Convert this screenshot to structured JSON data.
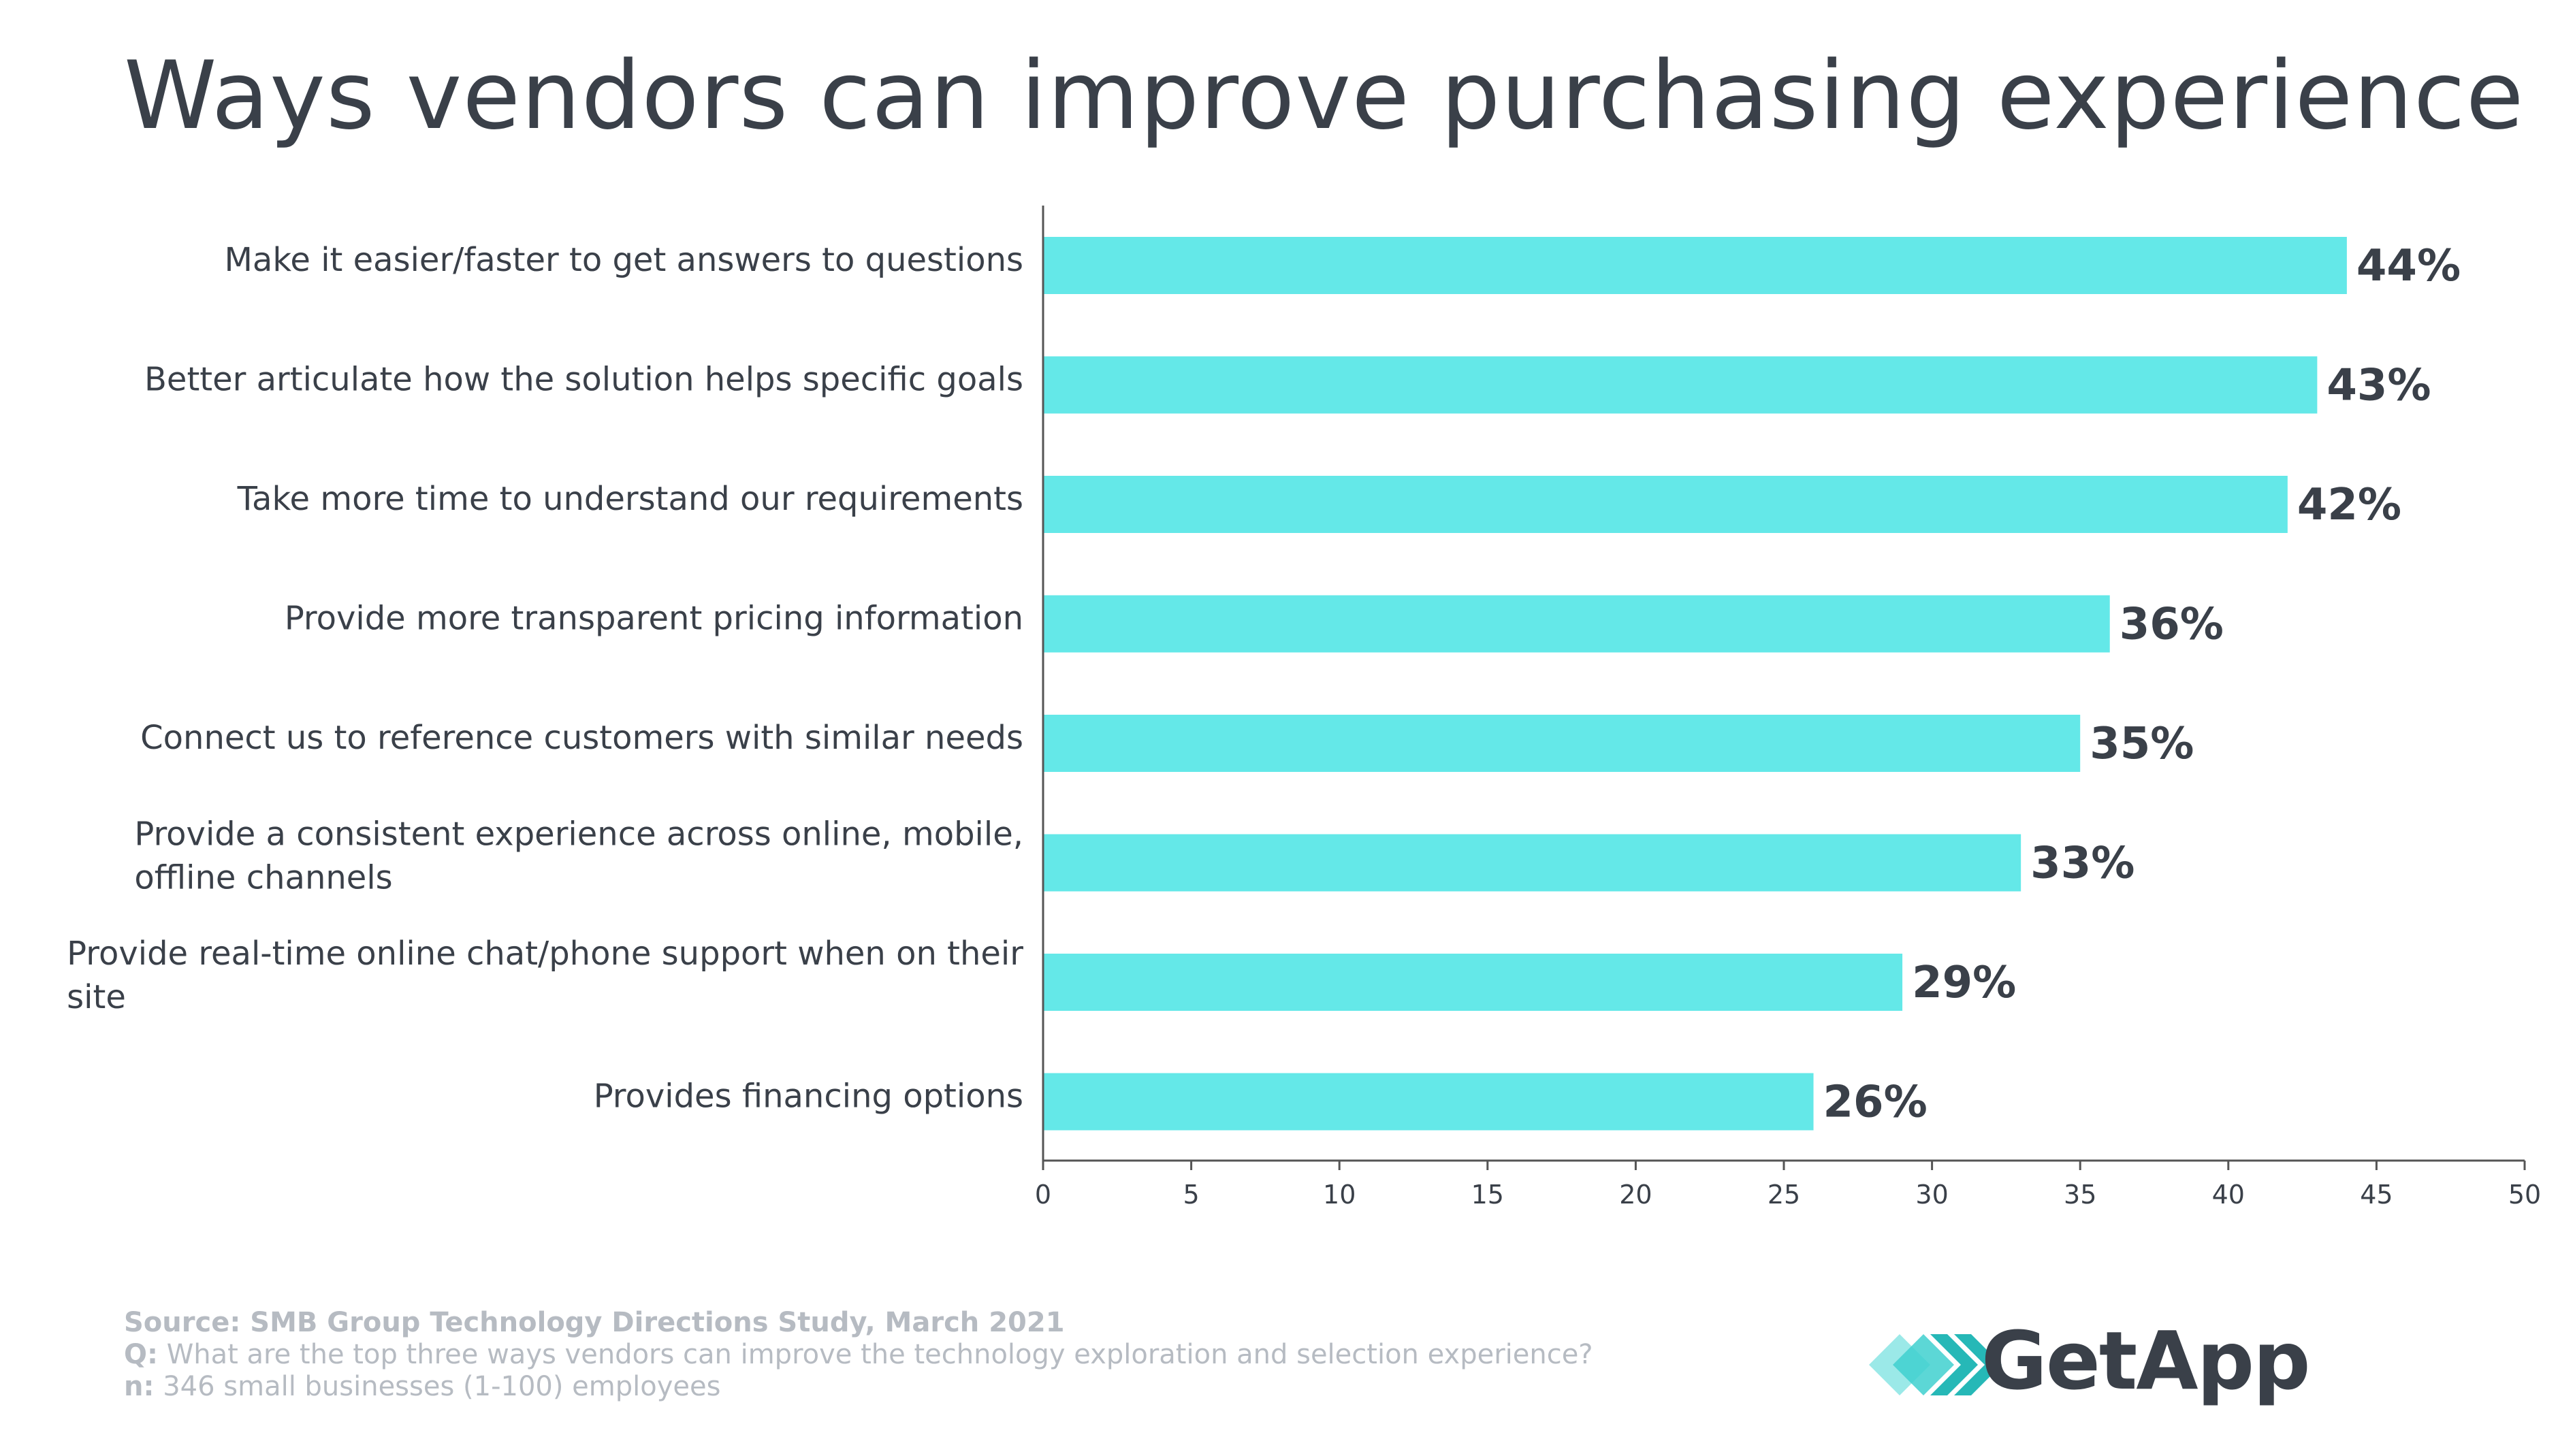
{
  "title": "Ways vendors can improve purchasing experience",
  "colors": {
    "bar": "#64e8e8",
    "text": "#3a4049",
    "axis": "#555555",
    "footer": "#b6bbc2",
    "logo_teal": "#3fd0cf",
    "logo_teal_dark": "#26b8b7"
  },
  "chart_data": {
    "type": "bar",
    "orientation": "horizontal",
    "categories": [
      [
        "Make it easier/faster to get answers to questions"
      ],
      [
        "Better articulate how the solution helps specific goals"
      ],
      [
        "Take more time to understand our requirements"
      ],
      [
        "Provide more transparent pricing information"
      ],
      [
        "Connect us to reference customers with similar needs"
      ],
      [
        "Provide a consistent experience across online, mobile,",
        "offline channels"
      ],
      [
        "Provide real-time online chat/phone support when on their",
        "site"
      ],
      [
        "Provides financing options"
      ]
    ],
    "values": [
      44,
      43,
      42,
      36,
      35,
      33,
      29,
      26
    ],
    "value_labels": [
      "44%",
      "43%",
      "42%",
      "36%",
      "35%",
      "33%",
      "29%",
      "26%"
    ],
    "xlim": [
      0,
      50
    ],
    "xticks": [
      "0",
      "5",
      "10",
      "15",
      "20",
      "25",
      "30",
      "35",
      "40",
      "45",
      "50"
    ],
    "xlabel": "",
    "ylabel": "",
    "grid": false
  },
  "footer": {
    "source": "Source: SMB Group Technology Directions Study, March 2021",
    "q_label": "Q:",
    "q_text": " What are the top three ways vendors can improve the technology exploration and selection experience?",
    "n_label": "n:",
    "n_text": " 346 small businesses (1-100) employees"
  },
  "logo": {
    "text": "GetApp"
  }
}
